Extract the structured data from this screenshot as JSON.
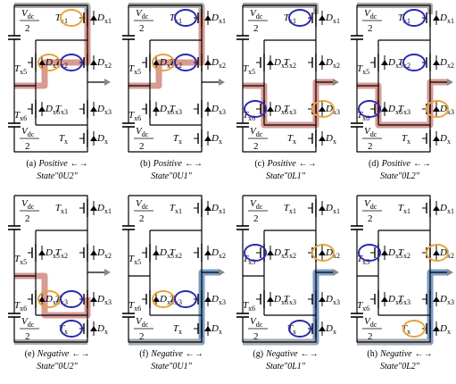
{
  "labels": {
    "vdc": {
      "main": "V",
      "sub": "dc"
    },
    "half": "2",
    "tx1": {
      "main": "T",
      "sub": "x1"
    },
    "dx1": {
      "main": "D",
      "sub": "x1"
    },
    "tx2": {
      "main": "T",
      "sub": "x2"
    },
    "dx2": {
      "main": "D",
      "sub": "x2"
    },
    "tx3": {
      "main": "T",
      "sub": "x3"
    },
    "dx3": {
      "main": "D",
      "sub": "x3"
    },
    "tx": {
      "main": "T",
      "sub": "x"
    },
    "dx": {
      "main": "D",
      "sub": "x"
    },
    "tx5": {
      "main": "T",
      "sub": "x5"
    },
    "dx5": {
      "main": "D",
      "sub": "x5"
    },
    "tx6": {
      "main": "T",
      "sub": "x6"
    },
    "dx6": {
      "main": "D",
      "sub": "x6"
    }
  },
  "panels": [
    {
      "tag": "(a)",
      "polarity": "Positive",
      "arrow": "←→",
      "state": "State\"0U2\""
    },
    {
      "tag": "(b)",
      "polarity": "Positive",
      "arrow": "←→",
      "state": "State\"0U1\""
    },
    {
      "tag": "(c)",
      "polarity": "Positive",
      "arrow": "←→",
      "state": "State\"0L1\""
    },
    {
      "tag": "(d)",
      "polarity": "Positive",
      "arrow": "←→",
      "state": "State\"0L2\""
    },
    {
      "tag": "(e)",
      "polarity": "Negative",
      "arrow": "←→",
      "state": "State\"0U2\""
    },
    {
      "tag": "(f)",
      "polarity": "Negative",
      "arrow": "←→",
      "state": "State\"0U1\""
    },
    {
      "tag": "(g)",
      "polarity": "Negative",
      "arrow": "←→",
      "state": "State\"0L1\""
    },
    {
      "tag": "(h)",
      "polarity": "Negative",
      "arrow": "←→",
      "state": "State\"0L2\""
    }
  ]
}
